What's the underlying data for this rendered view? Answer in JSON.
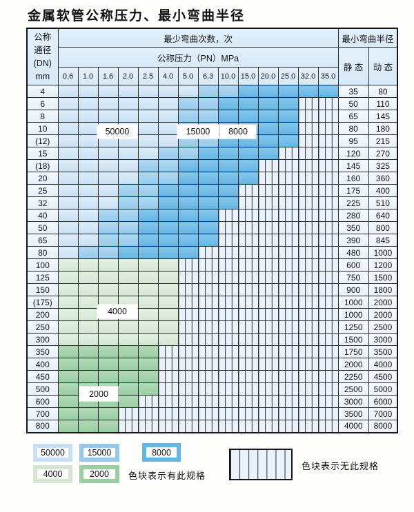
{
  "title": "金属软管公称压力、最小弯曲半径",
  "table": {
    "corner": {
      "line1": "公称",
      "line2": "通径",
      "line3": "(DN)",
      "line4": "mm"
    },
    "header_cycles": "最少弯曲次数，次",
    "header_pressure": "公称压力（PN）MPa",
    "header_radius": "最小弯曲半径",
    "header_static": "静 态",
    "header_dynamic": "动 态",
    "pressure_columns": [
      "0.6",
      "1.0",
      "1.6",
      "2.0",
      "2.5",
      "4.0",
      "5.0",
      "6.3",
      "10.0",
      "15.0",
      "20.0",
      "25.0",
      "32.0",
      "35.0"
    ],
    "cell_legend": {
      "L": "50000次-浅蓝",
      "M": "15000次-中蓝",
      "D": "8000次-深蓝",
      "G": "4000次-浅绿",
      "N": "2000次-中绿",
      "X": "无此规格"
    },
    "rows": [
      {
        "dn": "4",
        "static": "35",
        "dynamic": "80",
        "cells": [
          "L",
          "L",
          "L",
          "L",
          "L",
          "L",
          "L",
          "M",
          "M",
          "D",
          "D",
          "D",
          "D",
          "D"
        ]
      },
      {
        "dn": "6",
        "static": "50",
        "dynamic": "110",
        "cells": [
          "L",
          "L",
          "L",
          "L",
          "L",
          "L",
          "M",
          "M",
          "D",
          "D",
          "D",
          "D",
          "X",
          "X"
        ]
      },
      {
        "dn": "8",
        "static": "65",
        "dynamic": "145",
        "cells": [
          "L",
          "L",
          "L",
          "L",
          "L",
          "L",
          "M",
          "M",
          "D",
          "D",
          "D",
          "D",
          "X",
          "X"
        ]
      },
      {
        "dn": "10",
        "static": "80",
        "dynamic": "180",
        "cells": [
          "L",
          "L",
          "L",
          "L",
          "L",
          "L",
          "M",
          "M",
          "D",
          "D",
          "D",
          "D",
          "X",
          "X"
        ]
      },
      {
        "dn": "(12)",
        "static": "95",
        "dynamic": "215",
        "cells": [
          "L",
          "L",
          "L",
          "L",
          "L",
          "L",
          "M",
          "M",
          "D",
          "D",
          "D",
          "D",
          "X",
          "X"
        ]
      },
      {
        "dn": "15",
        "static": "120",
        "dynamic": "270",
        "cells": [
          "L",
          "L",
          "L",
          "L",
          "L",
          "M",
          "M",
          "D",
          "D",
          "D",
          "D",
          "X",
          "X",
          "X"
        ]
      },
      {
        "dn": "(18)",
        "static": "145",
        "dynamic": "325",
        "cells": [
          "L",
          "L",
          "L",
          "L",
          "M",
          "M",
          "D",
          "D",
          "D",
          "D",
          "X",
          "X",
          "X",
          "X"
        ]
      },
      {
        "dn": "20",
        "static": "160",
        "dynamic": "360",
        "cells": [
          "L",
          "L",
          "L",
          "L",
          "M",
          "M",
          "D",
          "D",
          "D",
          "D",
          "X",
          "X",
          "X",
          "X"
        ]
      },
      {
        "dn": "25",
        "static": "175",
        "dynamic": "400",
        "cells": [
          "L",
          "L",
          "L",
          "M",
          "M",
          "D",
          "D",
          "D",
          "D",
          "X",
          "X",
          "X",
          "X",
          "X"
        ]
      },
      {
        "dn": "32",
        "static": "225",
        "dynamic": "510",
        "cells": [
          "L",
          "L",
          "L",
          "M",
          "M",
          "D",
          "D",
          "D",
          "D",
          "X",
          "X",
          "X",
          "X",
          "X"
        ]
      },
      {
        "dn": "40",
        "static": "280",
        "dynamic": "640",
        "cells": [
          "L",
          "L",
          "M",
          "M",
          "D",
          "D",
          "D",
          "D",
          "X",
          "X",
          "X",
          "X",
          "X",
          "X"
        ]
      },
      {
        "dn": "50",
        "static": "350",
        "dynamic": "800",
        "cells": [
          "L",
          "L",
          "M",
          "M",
          "D",
          "D",
          "D",
          "D",
          "X",
          "X",
          "X",
          "X",
          "X",
          "X"
        ]
      },
      {
        "dn": "65",
        "static": "390",
        "dynamic": "845",
        "cells": [
          "L",
          "L",
          "M",
          "M",
          "D",
          "D",
          "D",
          "D",
          "X",
          "X",
          "X",
          "X",
          "X",
          "X"
        ]
      },
      {
        "dn": "80",
        "static": "480",
        "dynamic": "1000",
        "cells": [
          "L",
          "M",
          "M",
          "D",
          "D",
          "D",
          "D",
          "X",
          "X",
          "X",
          "X",
          "X",
          "X",
          "X"
        ]
      },
      {
        "dn": "100",
        "static": "600",
        "dynamic": "1200",
        "cells": [
          "G",
          "G",
          "G",
          "G",
          "G",
          "G",
          "X",
          "X",
          "X",
          "X",
          "X",
          "X",
          "X",
          "X"
        ]
      },
      {
        "dn": "125",
        "static": "750",
        "dynamic": "1500",
        "cells": [
          "G",
          "G",
          "G",
          "G",
          "G",
          "G",
          "X",
          "X",
          "X",
          "X",
          "X",
          "X",
          "X",
          "X"
        ]
      },
      {
        "dn": "150",
        "static": "900",
        "dynamic": "1800",
        "cells": [
          "G",
          "G",
          "G",
          "G",
          "G",
          "G",
          "X",
          "X",
          "X",
          "X",
          "X",
          "X",
          "X",
          "X"
        ]
      },
      {
        "dn": "(175)",
        "static": "1000",
        "dynamic": "2000",
        "cells": [
          "G",
          "G",
          "G",
          "G",
          "G",
          "G",
          "X",
          "X",
          "X",
          "X",
          "X",
          "X",
          "X",
          "X"
        ]
      },
      {
        "dn": "200",
        "static": "1000",
        "dynamic": "2000",
        "cells": [
          "G",
          "G",
          "G",
          "G",
          "G",
          "G",
          "X",
          "X",
          "X",
          "X",
          "X",
          "X",
          "X",
          "X"
        ]
      },
      {
        "dn": "250",
        "static": "1250",
        "dynamic": "2500",
        "cells": [
          "G",
          "G",
          "G",
          "G",
          "G",
          "G",
          "X",
          "X",
          "X",
          "X",
          "X",
          "X",
          "X",
          "X"
        ]
      },
      {
        "dn": "300",
        "static": "1500",
        "dynamic": "3000",
        "cells": [
          "G",
          "G",
          "G",
          "G",
          "G",
          "G",
          "X",
          "X",
          "X",
          "X",
          "X",
          "X",
          "X",
          "X"
        ]
      },
      {
        "dn": "350",
        "static": "1750",
        "dynamic": "3500",
        "cells": [
          "N",
          "N",
          "N",
          "N",
          "N",
          "X",
          "X",
          "X",
          "X",
          "X",
          "X",
          "X",
          "X",
          "X"
        ]
      },
      {
        "dn": "400",
        "static": "2000",
        "dynamic": "4000",
        "cells": [
          "N",
          "N",
          "N",
          "N",
          "N",
          "X",
          "X",
          "X",
          "X",
          "X",
          "X",
          "X",
          "X",
          "X"
        ]
      },
      {
        "dn": "450",
        "static": "2250",
        "dynamic": "4500",
        "cells": [
          "N",
          "N",
          "N",
          "N",
          "N",
          "X",
          "X",
          "X",
          "X",
          "X",
          "X",
          "X",
          "X",
          "X"
        ]
      },
      {
        "dn": "500",
        "static": "2500",
        "dynamic": "5000",
        "cells": [
          "N",
          "N",
          "N",
          "N",
          "N",
          "X",
          "X",
          "X",
          "X",
          "X",
          "X",
          "X",
          "X",
          "X"
        ]
      },
      {
        "dn": "600",
        "static": "3000",
        "dynamic": "6000",
        "cells": [
          "N",
          "N",
          "N",
          "N",
          "X",
          "X",
          "X",
          "X",
          "X",
          "X",
          "X",
          "X",
          "X",
          "X"
        ]
      },
      {
        "dn": "700",
        "static": "3500",
        "dynamic": "7000",
        "cells": [
          "N",
          "N",
          "N",
          "X",
          "X",
          "X",
          "X",
          "X",
          "X",
          "X",
          "X",
          "X",
          "X",
          "X"
        ]
      },
      {
        "dn": "800",
        "static": "4000",
        "dynamic": "8000",
        "cells": [
          "N",
          "N",
          "N",
          "X",
          "X",
          "X",
          "X",
          "X",
          "X",
          "X",
          "X",
          "X",
          "X",
          "X"
        ]
      }
    ]
  },
  "overlays": {
    "l50000": {
      "text": "50000"
    },
    "l15000": {
      "text": "15000"
    },
    "l8000": {
      "text": "8000"
    },
    "l4000": {
      "text": "4000"
    },
    "l2000": {
      "text": "2000"
    }
  },
  "legend": {
    "swatches": [
      {
        "label": "50000",
        "color_key": "light-blue"
      },
      {
        "label": "15000",
        "color_key": "medium-blue"
      },
      {
        "label": "8000",
        "color_key": "dark-blue"
      },
      {
        "label": "4000",
        "color_key": "light-green"
      },
      {
        "label": "2000",
        "color_key": "medium-green"
      }
    ],
    "has_spec_note": "色块表示有此规格",
    "no_spec_note": "色块表示无此规格"
  },
  "colors": {
    "light-blue": "#c7e0f4",
    "light-blue-hi": "#ddedf9",
    "medium-blue": "#94c9ec",
    "medium-blue-hi": "#b0d8f2",
    "dark-blue": "#64b4e4",
    "dark-blue-hi": "#86c6ec",
    "light-green": "#d3e7d2",
    "light-green-hi": "#e3f0e2",
    "medium-green": "#97cda1",
    "medium-green-hi": "#b2d9b8",
    "hatch-bg": "#eaf2fb",
    "grid-line": "#2b2b2b",
    "label-bg": "#e4eff9",
    "header-bg": "#d7e9f7",
    "value-bg": "#eaf2fa"
  }
}
